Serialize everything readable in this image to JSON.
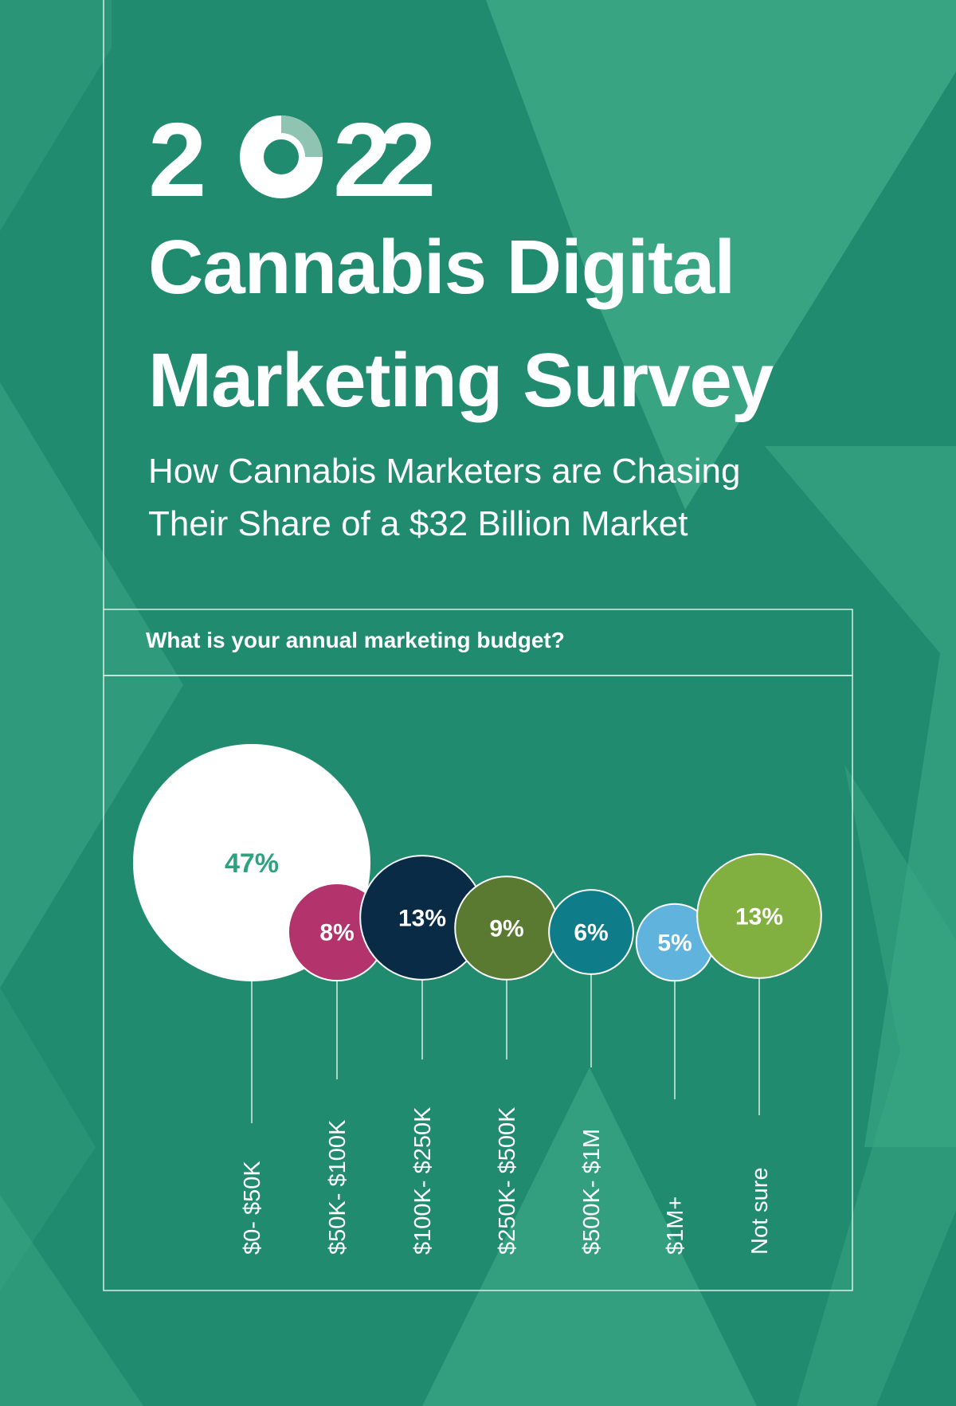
{
  "header": {
    "year_digits": [
      "2",
      "0",
      "2",
      "2"
    ],
    "title_lines": [
      "Cannabis Digital",
      "Marketing Survey"
    ],
    "subtitle_lines": [
      "How Cannabis Marketers are Chasing",
      "Their Share of a $32 Billion Market"
    ]
  },
  "question": "What is your annual marketing budget?",
  "colors": {
    "background": "#208b6f",
    "accent_light": "#3eaa86",
    "line": "#d8efe6"
  },
  "chart_data": {
    "type": "bubble",
    "title": "What is your annual marketing budget?",
    "categories": [
      "$0- $50K",
      "$50K- $100K",
      "$100K- $250K",
      "$250K- $500K",
      "$500K- $1M",
      "$1M+",
      "Not sure"
    ],
    "values": [
      47,
      8,
      13,
      9,
      6,
      5,
      13
    ],
    "value_labels": [
      "47%",
      "8%",
      "13%",
      "9%",
      "6%",
      "5%",
      "13%"
    ],
    "colors": [
      "#ffffff",
      "#b3336d",
      "#0a2b45",
      "#5a7a32",
      "#0f7c89",
      "#5fb3dd",
      "#82b040"
    ],
    "label_colors": [
      "#2ea17e",
      "#ffffff",
      "#ffffff",
      "#ffffff",
      "#ffffff",
      "#ffffff",
      "#ffffff"
    ]
  }
}
